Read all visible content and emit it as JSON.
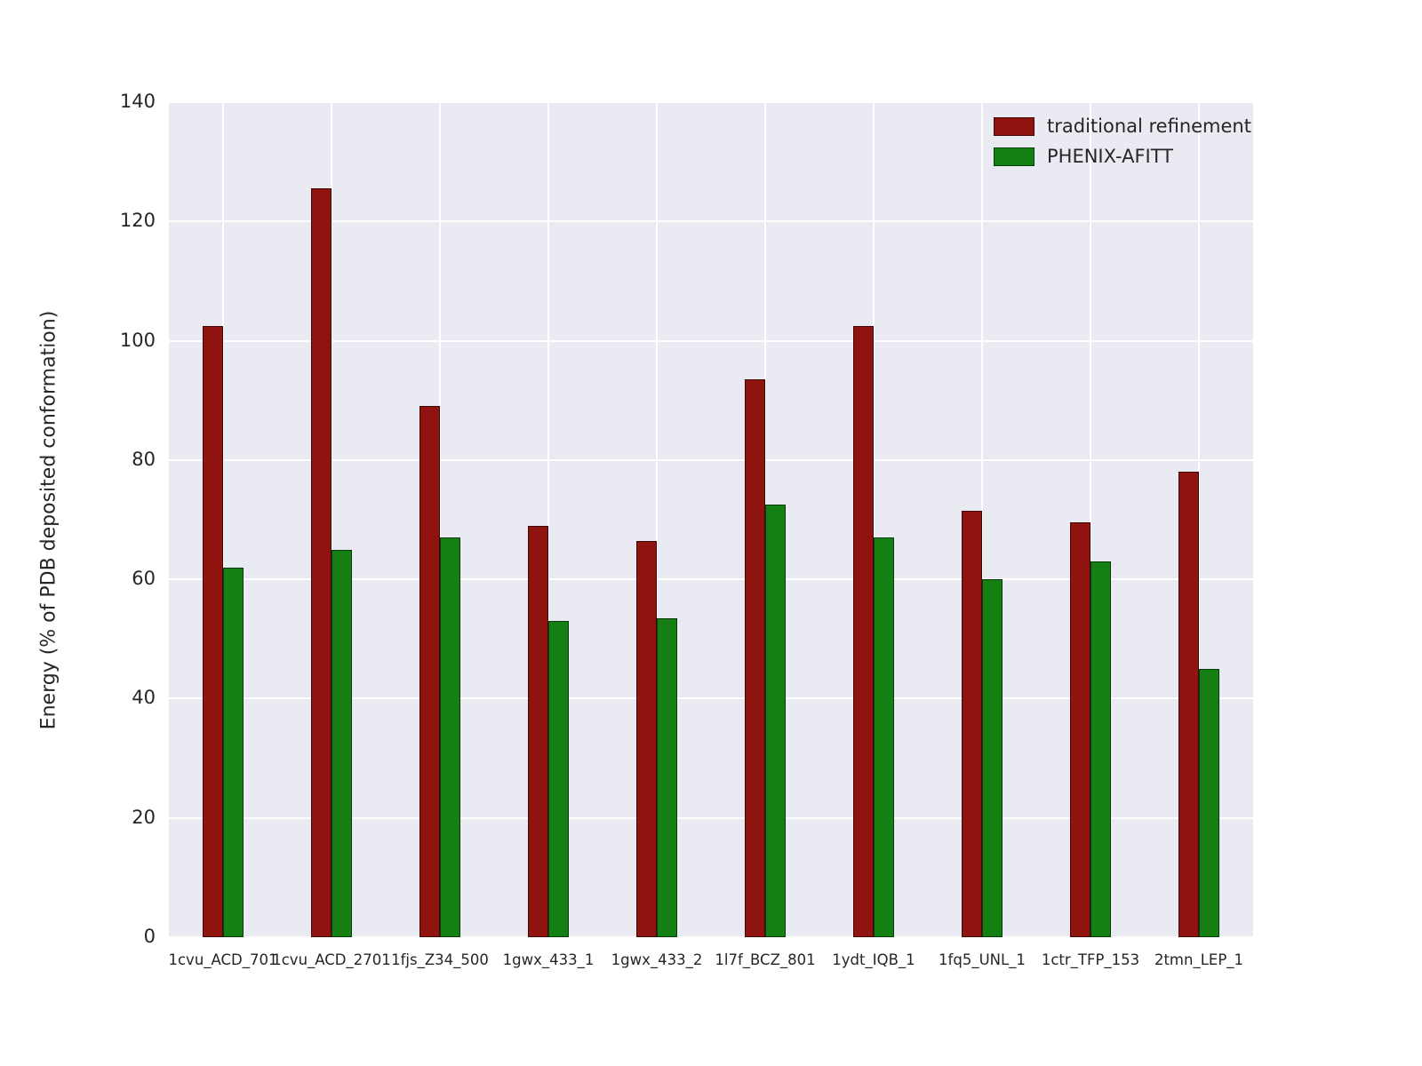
{
  "chart_data": {
    "type": "bar",
    "categories": [
      "1cvu_ACD_701",
      "1cvu_ACD_2701",
      "1fjs_Z34_500",
      "1gwx_433_1",
      "1gwx_433_2",
      "1l7f_BCZ_801",
      "1ydt_IQB_1",
      "1fq5_UNL_1",
      "1ctr_TFP_153",
      "2tmn_LEP_1"
    ],
    "series": [
      {
        "name": "traditional refinement",
        "color": "#8f1410",
        "values": [
          102.5,
          125.5,
          89,
          69,
          66.5,
          93.5,
          102.5,
          71.5,
          69.5,
          78
        ]
      },
      {
        "name": "PHENIX-AFITT",
        "color": "#148014",
        "values": [
          62,
          65,
          67,
          53,
          53.5,
          72.5,
          67,
          60,
          63,
          45
        ]
      }
    ],
    "title": "",
    "xlabel": "",
    "ylabel": "Energy (% of PDB deposited conformation)",
    "ylim": [
      0,
      140
    ],
    "yticks": [
      0,
      20,
      40,
      60,
      80,
      100,
      120,
      140
    ],
    "grid": true,
    "legend_position": "upper right",
    "plot_background": "#eaeaf2",
    "grid_color": "#ffffff"
  }
}
